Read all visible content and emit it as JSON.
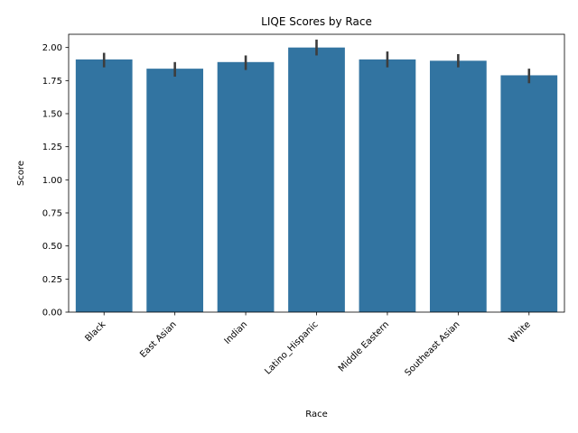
{
  "chart_data": {
    "type": "bar",
    "title": "LIQE Scores by Race",
    "xlabel": "Race",
    "ylabel": "Score",
    "categories": [
      "Black",
      "East Asian",
      "Indian",
      "Latino_Hispanic",
      "Middle Eastern",
      "Southeast Asian",
      "White"
    ],
    "values": [
      1.91,
      1.84,
      1.89,
      2.0,
      1.91,
      1.9,
      1.79
    ],
    "error_low": [
      1.85,
      1.78,
      1.83,
      1.94,
      1.85,
      1.85,
      1.73
    ],
    "error_high": [
      1.96,
      1.89,
      1.94,
      2.06,
      1.97,
      1.95,
      1.84
    ],
    "ylim": [
      0,
      2.1
    ],
    "yticks": [
      "0.00",
      "0.25",
      "0.50",
      "0.75",
      "1.00",
      "1.25",
      "1.50",
      "1.75",
      "2.00"
    ],
    "grid": false,
    "bar_color": "#3274a1",
    "error_color": "#3d3d3d"
  }
}
